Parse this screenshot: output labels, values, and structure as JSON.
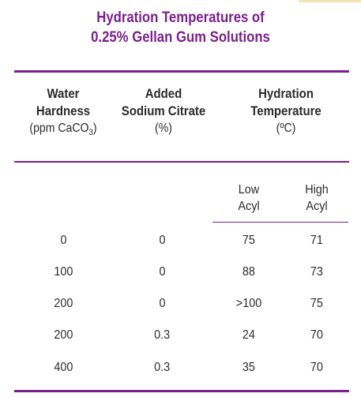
{
  "title": {
    "line1": "Hydration Temperatures of",
    "line2": "0.25% Gellan Gum Solutions"
  },
  "columns": [
    {
      "line1": "Water",
      "line2": "Hardness",
      "unit_prefix": "(ppm CaCO",
      "unit_sub": "3",
      "unit_suffix": ")"
    },
    {
      "line1": "Added",
      "line2": "Sodium Citrate",
      "unit": "(%)"
    },
    {
      "line1": "Hydration",
      "line2": "Temperature",
      "unit": "(ºC)"
    }
  ],
  "subcolumns": [
    {
      "line1": "Low",
      "line2": "Acyl"
    },
    {
      "line1": "High",
      "line2": "Acyl"
    }
  ],
  "rows": [
    [
      "0",
      "0",
      "75",
      "71"
    ],
    [
      "100",
      "0",
      "88",
      "73"
    ],
    [
      "200",
      "0",
      ">100",
      "75"
    ],
    [
      "200",
      "0.3",
      "24",
      "70"
    ],
    [
      "400",
      "0.3",
      "35",
      "70"
    ]
  ],
  "colors": {
    "accent": "#7b1f8e",
    "text": "#2b2b2b"
  }
}
